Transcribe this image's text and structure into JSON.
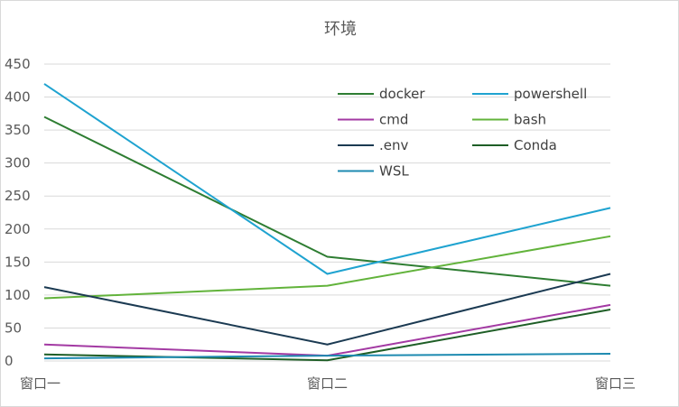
{
  "chart_data": {
    "type": "line",
    "title": "环境",
    "categories": [
      "窗口一",
      "窗口二",
      "窗口三"
    ],
    "ylim": [
      0,
      450
    ],
    "yticks": [
      0,
      50,
      100,
      150,
      200,
      250,
      300,
      350,
      400,
      450
    ],
    "grid": "horizontal",
    "legend": "top-right",
    "series": [
      {
        "name": "docker",
        "color": "#2e7d32",
        "values": [
          370,
          158,
          114
        ]
      },
      {
        "name": "powershell",
        "color": "#1fa3d0",
        "values": [
          420,
          132,
          232
        ]
      },
      {
        "name": "cmd",
        "color": "#a33aa3",
        "values": [
          25,
          8,
          85
        ]
      },
      {
        "name": "bash",
        "color": "#62b33b",
        "values": [
          95,
          114,
          189
        ]
      },
      {
        "name": ".env",
        "color": "#1b3a52",
        "values": [
          112,
          25,
          132
        ]
      },
      {
        "name": "Conda",
        "color": "#1e5e26",
        "values": [
          10,
          1,
          78
        ]
      },
      {
        "name": "WSL",
        "color": "#1d8ab0",
        "values": [
          4,
          8,
          11
        ]
      }
    ]
  }
}
